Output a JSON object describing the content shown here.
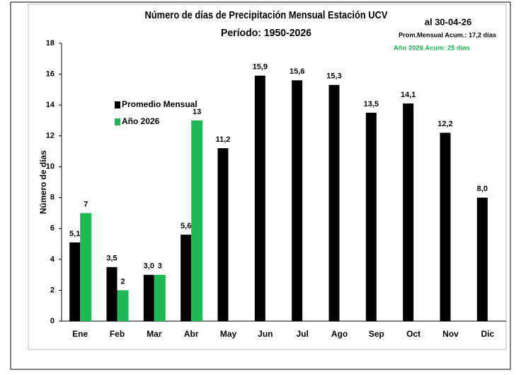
{
  "chart_data": {
    "type": "bar",
    "title": "Número de días de Precipitación Mensual Estación UCV",
    "subtitle": "Período: 1950-2026",
    "annotations": [
      "al 30-04-26",
      "Prom.Mensual  Acum.: 17,2 días",
      "Año 2026 Acum: 25 días"
    ],
    "y_label": "Número de días",
    "categories": [
      "Ene",
      "Feb",
      "Mar",
      "Abr",
      "May",
      "Jun",
      "Jul",
      "Ago",
      "Sep",
      "Oct",
      "Nov",
      "Dic"
    ],
    "series": [
      {
        "name": "Promedio Mensual",
        "color": "#000000",
        "values": [
          5.1,
          3.5,
          3.0,
          5.6,
          11.2,
          15.9,
          15.6,
          15.3,
          13.5,
          14.1,
          12.2,
          8.0
        ],
        "value_labels": [
          "5,1",
          "3,5",
          "3,0",
          "5,6",
          "11,2",
          "15,9",
          "15,6",
          "15,3",
          "13,5",
          "14,1",
          "12,2",
          "8,0"
        ]
      },
      {
        "name": "Año 2026",
        "color": "#1db954",
        "values": [
          7,
          2,
          3,
          13,
          null,
          null,
          null,
          null,
          null,
          null,
          null,
          null
        ]
      }
    ],
    "ylim": [
      0,
      18
    ],
    "yticks": [
      0,
      2,
      4,
      6,
      8,
      10,
      12,
      14,
      16,
      18
    ],
    "grid": false
  }
}
